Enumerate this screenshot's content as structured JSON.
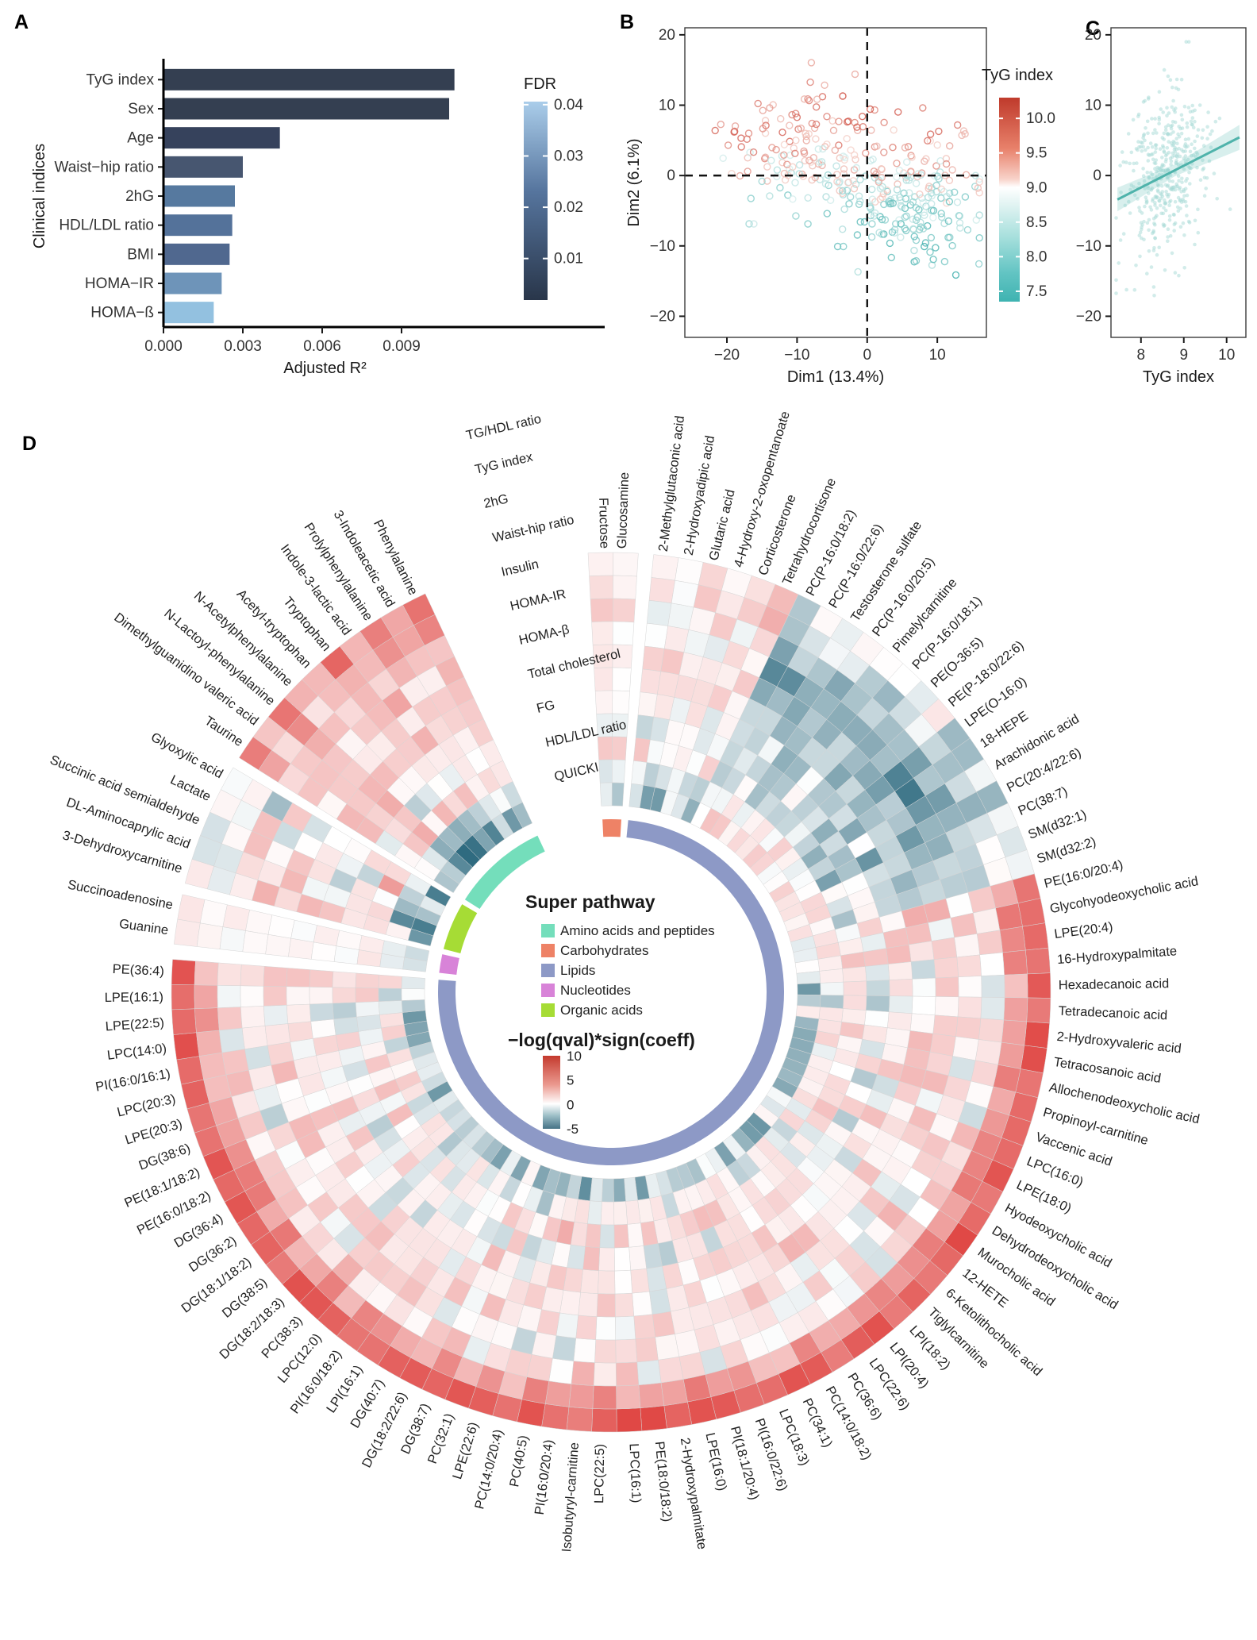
{
  "panel_letters": {
    "a": "A",
    "b": "B",
    "c": "C",
    "d": "D"
  },
  "chart_data": {
    "charts": [
      {
        "id": "A",
        "type": "bar",
        "orientation": "horizontal",
        "xlabel": "Adjusted R²",
        "ylabel": "Clinical indices",
        "categories": [
          "TyG index",
          "Sex",
          "Age",
          "Waist−hip ratio",
          "2hG",
          "HDL/LDL ratio",
          "BMI",
          "HOMA−IR",
          "HOMA−ß"
        ],
        "values": [
          0.011,
          0.0108,
          0.0044,
          0.003,
          0.0027,
          0.0026,
          0.0025,
          0.0022,
          0.0019
        ],
        "bar_colors": [
          "#343f51",
          "#343f51",
          "#36425c",
          "#475670",
          "#56799f",
          "#54729a",
          "#50688f",
          "#6e94b9",
          "#93c1e0"
        ],
        "xlim": [
          0,
          0.0115
        ],
        "x_ticks": {
          "labels": [
            "0.000",
            "0.003",
            "0.006",
            "0.009"
          ],
          "values": [
            0,
            0.003,
            0.006,
            0.009
          ]
        },
        "legend": {
          "title": "FDR",
          "tick_labels": [
            "0.04",
            "0.03",
            "0.02",
            "0.01"
          ],
          "tick_values": [
            0.04,
            0.03,
            0.02,
            0.01
          ],
          "domain": [
            0.0406,
            0.0019
          ],
          "colors": [
            "#aacdea",
            "#56759e",
            "#29364a"
          ]
        }
      },
      {
        "id": "B",
        "type": "scatter",
        "xlabel": "Dim1 (13.4%)",
        "ylabel": "Dim2 (6.1%)",
        "xlim": [
          -26,
          17
        ],
        "ylim": [
          -23,
          21
        ],
        "x_ticks": {
          "labels": [
            "−20",
            "−10",
            "0",
            "10"
          ],
          "values": [
            -20,
            -10,
            0,
            10
          ]
        },
        "y_ticks": {
          "labels": [
            "−20",
            "−10",
            "0",
            "10",
            "20"
          ],
          "values": [
            -20,
            -10,
            0,
            10,
            20
          ]
        },
        "zero_lines": true,
        "legend": {
          "title": "TyG index",
          "tick_labels": [
            "10.0",
            "9.5",
            "9.0",
            "8.5",
            "8.0",
            "7.5"
          ],
          "tick_values": [
            10,
            9.5,
            9,
            8.5,
            8,
            7.5
          ],
          "domain": [
            10.3,
            7.35
          ]
        },
        "point_style": {
          "shape": "open-circle",
          "radius": 4,
          "opacity": 0.8
        },
        "point_gen": {
          "seed": 11,
          "clusters": [
            {
              "n": 175,
              "cx": -8,
              "cy": 3,
              "sx": 5.5,
              "sy": 4.5
            },
            {
              "n": 205,
              "cx": 6,
              "cy": -3.5,
              "sx": 5.0,
              "sy": 4.2
            }
          ]
        },
        "color_scale": {
          "neg": "#2ea8a5",
          "mid": "#ffffff",
          "pos": "#c9392b"
        }
      },
      {
        "id": "C",
        "type": "scatter",
        "xlabel": "TyG index",
        "ylabel": "",
        "xlim": [
          7.3,
          10.45
        ],
        "ylim": [
          -23,
          21
        ],
        "x_ticks": {
          "labels": [
            "8",
            "9",
            "10"
          ],
          "values": [
            8,
            9,
            10
          ]
        },
        "y_ticks": {
          "labels": [
            "20",
            "10",
            "0",
            "−10",
            "−20"
          ],
          "values": [
            20,
            10,
            0,
            -10,
            -20
          ]
        },
        "regression": {
          "x0": 7.45,
          "y0": -3.41,
          "x1": 10.3,
          "y1": 5.43,
          "band_halfwidth_center": 0.85,
          "band_growth": 0.62,
          "band_center_x": 8.8
        },
        "point_gen": {
          "seed": 23,
          "n": 430,
          "x_mean": 8.55,
          "x_sd": 0.45,
          "slope": 3.1,
          "resid_sd": 5.9
        },
        "point_color": "#a5dad6",
        "line_color": "#4fb3ab",
        "band_color": "#86cdc7"
      },
      {
        "id": "D",
        "type": "heatmap",
        "subtype": "circular",
        "rings_outer_to_inner": [
          "TG/HDL ratio",
          "TyG index",
          "2hG",
          "Waist-hip ratio",
          "Insulin",
          "HOMA-IR",
          "HOMA-β",
          "Total cholesterol",
          "FG",
          "HDL/LDL ratio",
          "QUICKI"
        ],
        "value_legend": {
          "title": "−log(qval)*sign(coeff)",
          "tick_labels": [
            "10",
            "5",
            "0",
            "-5"
          ],
          "tick_values": [
            10,
            5,
            0,
            -5
          ]
        },
        "pathway_legend": {
          "title": "Super pathway",
          "entries": [
            {
              "label": "Amino acids and peptides",
              "color": "#74debb"
            },
            {
              "label": "Carbohydrates",
              "color": "#ee8266"
            },
            {
              "label": "Lipids",
              "color": "#8d99c6"
            },
            {
              "label": "Nucleotides",
              "color": "#d883d8"
            },
            {
              "label": "Organic acids",
              "color": "#a6dc35"
            }
          ]
        },
        "segments_clockwise": [
          {
            "id": "carbohydrates",
            "color": "#ee8266",
            "profile": "carb",
            "items": [
              "Fructose",
              "Glucosamine"
            ]
          },
          {
            "id": "lipids",
            "color": "#8d99c6",
            "profile": "lipid",
            "profile_ranges": [
              {
                "from": 0,
                "to": 3,
                "profile": "lipid_mild"
              },
              {
                "from": 4,
                "to": 5,
                "profile": "lipid_steroid"
              },
              {
                "from": 6,
                "to": 20,
                "profile": "lipid_teal"
              },
              {
                "from": 21,
                "to": 81,
                "profile": "lipid_strong"
              }
            ],
            "items": [
              "2-Methylglutaconic acid",
              "2-Hydroxyadipic acid",
              "Glutaric acid",
              "4-Hydroxy-2-oxopentanoate",
              "Corticosterone",
              "Tetrahydrocortisone",
              "PC(P-16:0/18:2)",
              "PC(P-16:0/22:6)",
              "Testosterone sulfate",
              "PC(P-16:0/20:5)",
              "Pimelylcarnitine",
              "PC(P-16:0/18:1)",
              "PE(O-36:5)",
              "PE(P-18:0/22:6)",
              "LPE(O-16:0)",
              "18-HEPE",
              "Arachidonic acid",
              "PC(20:4/22:6)",
              "PC(38:7)",
              "SM(d32:1)",
              "SM(d32:2)",
              "PE(16:0/20:4)",
              "Glycohyodeoxycholic acid",
              "LPE(20:4)",
              "16-Hydroxypalmitate",
              "Hexadecanoic acid",
              "Tetradecanoic acid",
              "2-Hydroxyvaleric acid",
              "Tetracosanoic acid",
              "Allochenodeoxycholic acid",
              "Propinoyl-carnitine",
              "Vaccenic acid",
              "LPC(16:0)",
              "LPE(18:0)",
              "Hyodeoxycholic acid",
              "Dehydrodeoxycholic acid",
              "Murocholic acid",
              "12-HETE",
              "6-Ketolithocholic acid",
              "Tiglylcarnitine",
              "LPI(18:2)",
              "LPI(20:4)",
              "LPC(22:6)",
              "PC(36:6)",
              "PC(14:0/18:2)",
              "PC(34:1)",
              "LPC(18:3)",
              "PI(16:0/22:6)",
              "PI(18:1/20:4)",
              "LPE(16:0)",
              "2-Hydroxypalmitate",
              "PE(18:0/18:2)",
              "LPC(16:1)",
              "LPC(22:5)",
              "Isobutyryl-carnitine",
              "PI(16:0/20:4)",
              "PC(40:5)",
              "PC(14:0/20:4)",
              "LPE(22:6)",
              "PC(32:1)",
              "DG(38:7)",
              "DG(18:2/22:6)",
              "DG(40:7)",
              "LPI(16:1)",
              "PI(16:0/18:2)",
              "LPC(12:0)",
              "PC(38:3)",
              "DG(18:2/18:3)",
              "DG(38:5)",
              "DG(18:1/18:2)",
              "DG(36:2)",
              "DG(36:4)",
              "PE(16:0/18:2)",
              "PE(18:1/18:2)",
              "DG(38:6)",
              "LPE(20:3)",
              "LPC(20:3)",
              "PI(16:0/16:1)",
              "LPC(14:0)",
              "LPE(22:5)",
              "LPE(16:1)",
              "PE(36:4)"
            ]
          },
          {
            "id": "nucleotides",
            "color": "#d883d8",
            "profile": "nucleotide",
            "items": [
              "Guanine",
              "Succinoadenosine"
            ]
          },
          {
            "id": "organic_acids",
            "color": "#a6dc35",
            "profile": "organic",
            "items": [
              "3-Dehydroxycarnitine",
              "DL-Aminocaprylic acid",
              "Succinic acid semialdehyde",
              "Lactate",
              "Glyoxylic acid"
            ]
          },
          {
            "id": "amino_acids",
            "color": "#74debb",
            "profile": "amino",
            "items": [
              "Taurine",
              "Dimethylguanidino valeric acid",
              "N-Lactoyl-phenylalanine",
              "N-Acetylphenylalanine",
              "Acetyl-tryptophan",
              "Tryptophan",
              "Indole-3-lactic acid",
              "Prolylphenylalanine",
              "3-Indoleacetic acid",
              "Phenylalanine"
            ]
          }
        ],
        "heat_model": {
          "note": "cell values approximate the printed figure; value = profile[ring] + noise",
          "seed": 42,
          "pos_color": "#df4340",
          "neg_color": "#2f6b80",
          "pos_max": 10,
          "neg_max": 6,
          "profiles": {
            "amino": [
              5.5,
              4.0,
              3.0,
              2.5,
              2.0,
              2.5,
              2.0,
              0.5,
              2.0,
              -2.0,
              -3.5
            ],
            "organic": [
              -0.5,
              -1.5,
              0.5,
              1.0,
              0.5,
              1.0,
              0.5,
              0.0,
              2.5,
              -2.5,
              -3.0
            ],
            "nucleotide": [
              0.6,
              0.4,
              0.2,
              0.4,
              0.2,
              0.2,
              0.2,
              0.1,
              0.4,
              -0.5,
              -1.0
            ],
            "carb": [
              1.0,
              1.5,
              2.0,
              1.0,
              0.5,
              1.0,
              0.5,
              0.5,
              2.0,
              -1.0,
              -1.5
            ],
            "lipid_mild": [
              1.0,
              2.0,
              1.5,
              1.0,
              2.5,
              1.0,
              0.5,
              0.0,
              2.0,
              -1.5,
              -2.0
            ],
            "lipid_steroid": [
              2.0,
              3.0,
              1.0,
              0.5,
              2.5,
              1.0,
              0.5,
              0.0,
              1.0,
              -1.0,
              -1.5
            ],
            "lipid_teal": [
              -1.0,
              -2.0,
              -3.0,
              -3.5,
              -3.0,
              -2.5,
              -2.0,
              -1.5,
              -2.0,
              0.5,
              1.5
            ],
            "lipid_strong": [
              8.0,
              5.0,
              1.5,
              1.0,
              1.5,
              1.5,
              1.0,
              0.5,
              1.5,
              0.0,
              -2.0
            ]
          },
          "amps": {
            "amino": 2.2,
            "organic": 3.0,
            "nucleotide": 0.9,
            "carb": 1.4,
            "lipid_mild": 1.8,
            "lipid_steroid": 1.8,
            "lipid_teal": 1.6,
            "lipid_strong": 2.4
          }
        }
      }
    ]
  }
}
